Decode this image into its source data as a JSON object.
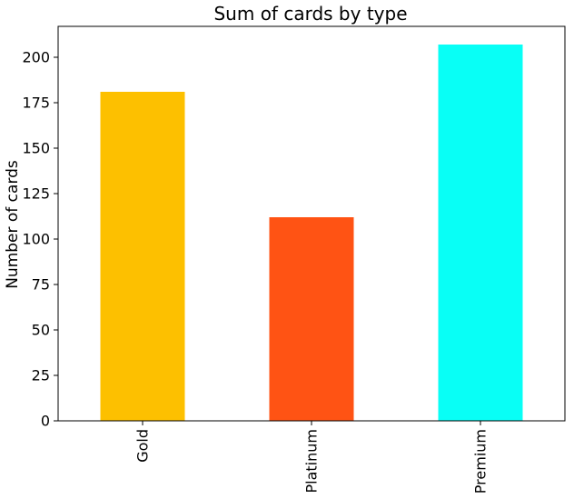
{
  "chart_data": {
    "type": "bar",
    "title": "Sum of cards by type",
    "xlabel": "",
    "ylabel": "Number of cards",
    "categories": [
      "Gold",
      "Platinum",
      "Premium"
    ],
    "values": [
      181,
      112,
      207
    ],
    "colors": [
      "#FDC000",
      "#FF5314",
      "#08FFF6"
    ],
    "ylim": [
      0,
      217
    ],
    "yticks": [
      0,
      25,
      50,
      75,
      100,
      125,
      150,
      175,
      200
    ],
    "grid": false,
    "legend": "none"
  }
}
